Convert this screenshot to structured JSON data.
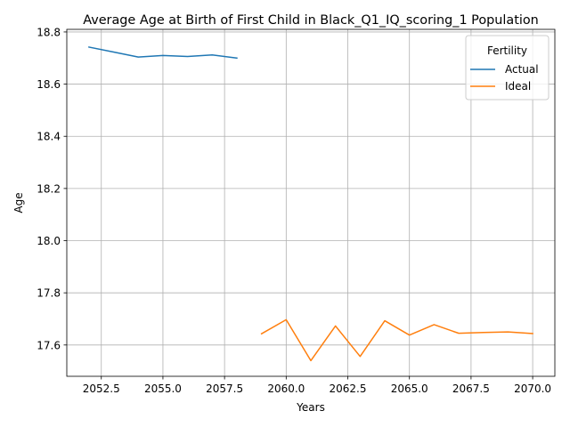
{
  "chart_data": {
    "type": "line",
    "title": "Average Age at Birth of First Child in Black_Q1_IQ_scoring_1 Population",
    "xlabel": "Years",
    "ylabel": "Age",
    "xlim": [
      2051.1,
      2070.9
    ],
    "ylim": [
      17.48,
      18.81
    ],
    "xticks": [
      2052.5,
      2055.0,
      2057.5,
      2060.0,
      2062.5,
      2065.0,
      2067.5,
      2070.0
    ],
    "xtick_labels": [
      "2052.5",
      "2055.0",
      "2057.5",
      "2060.0",
      "2062.5",
      "2065.0",
      "2067.5",
      "2070.0"
    ],
    "yticks": [
      17.6,
      17.8,
      18.0,
      18.2,
      18.4,
      18.6,
      18.8
    ],
    "ytick_labels": [
      "17.6",
      "17.8",
      "18.0",
      "18.2",
      "18.4",
      "18.6",
      "18.8"
    ],
    "grid": true,
    "legend": {
      "title": "Fertility",
      "placement": "top-right"
    },
    "series": [
      {
        "name": "Actual",
        "color": "#1f77b4",
        "x": [
          2052,
          2053,
          2054,
          2055,
          2056,
          2057,
          2058
        ],
        "y": [
          18.742,
          18.723,
          18.704,
          18.71,
          18.706,
          18.712,
          18.7
        ]
      },
      {
        "name": "Ideal",
        "color": "#ff7f0e",
        "x": [
          2059,
          2060,
          2061,
          2062,
          2063,
          2064,
          2065,
          2066,
          2067,
          2068,
          2069,
          2070
        ],
        "y": [
          17.643,
          17.697,
          17.54,
          17.673,
          17.556,
          17.693,
          17.638,
          17.678,
          17.645,
          17.648,
          17.65,
          17.644
        ]
      }
    ]
  }
}
